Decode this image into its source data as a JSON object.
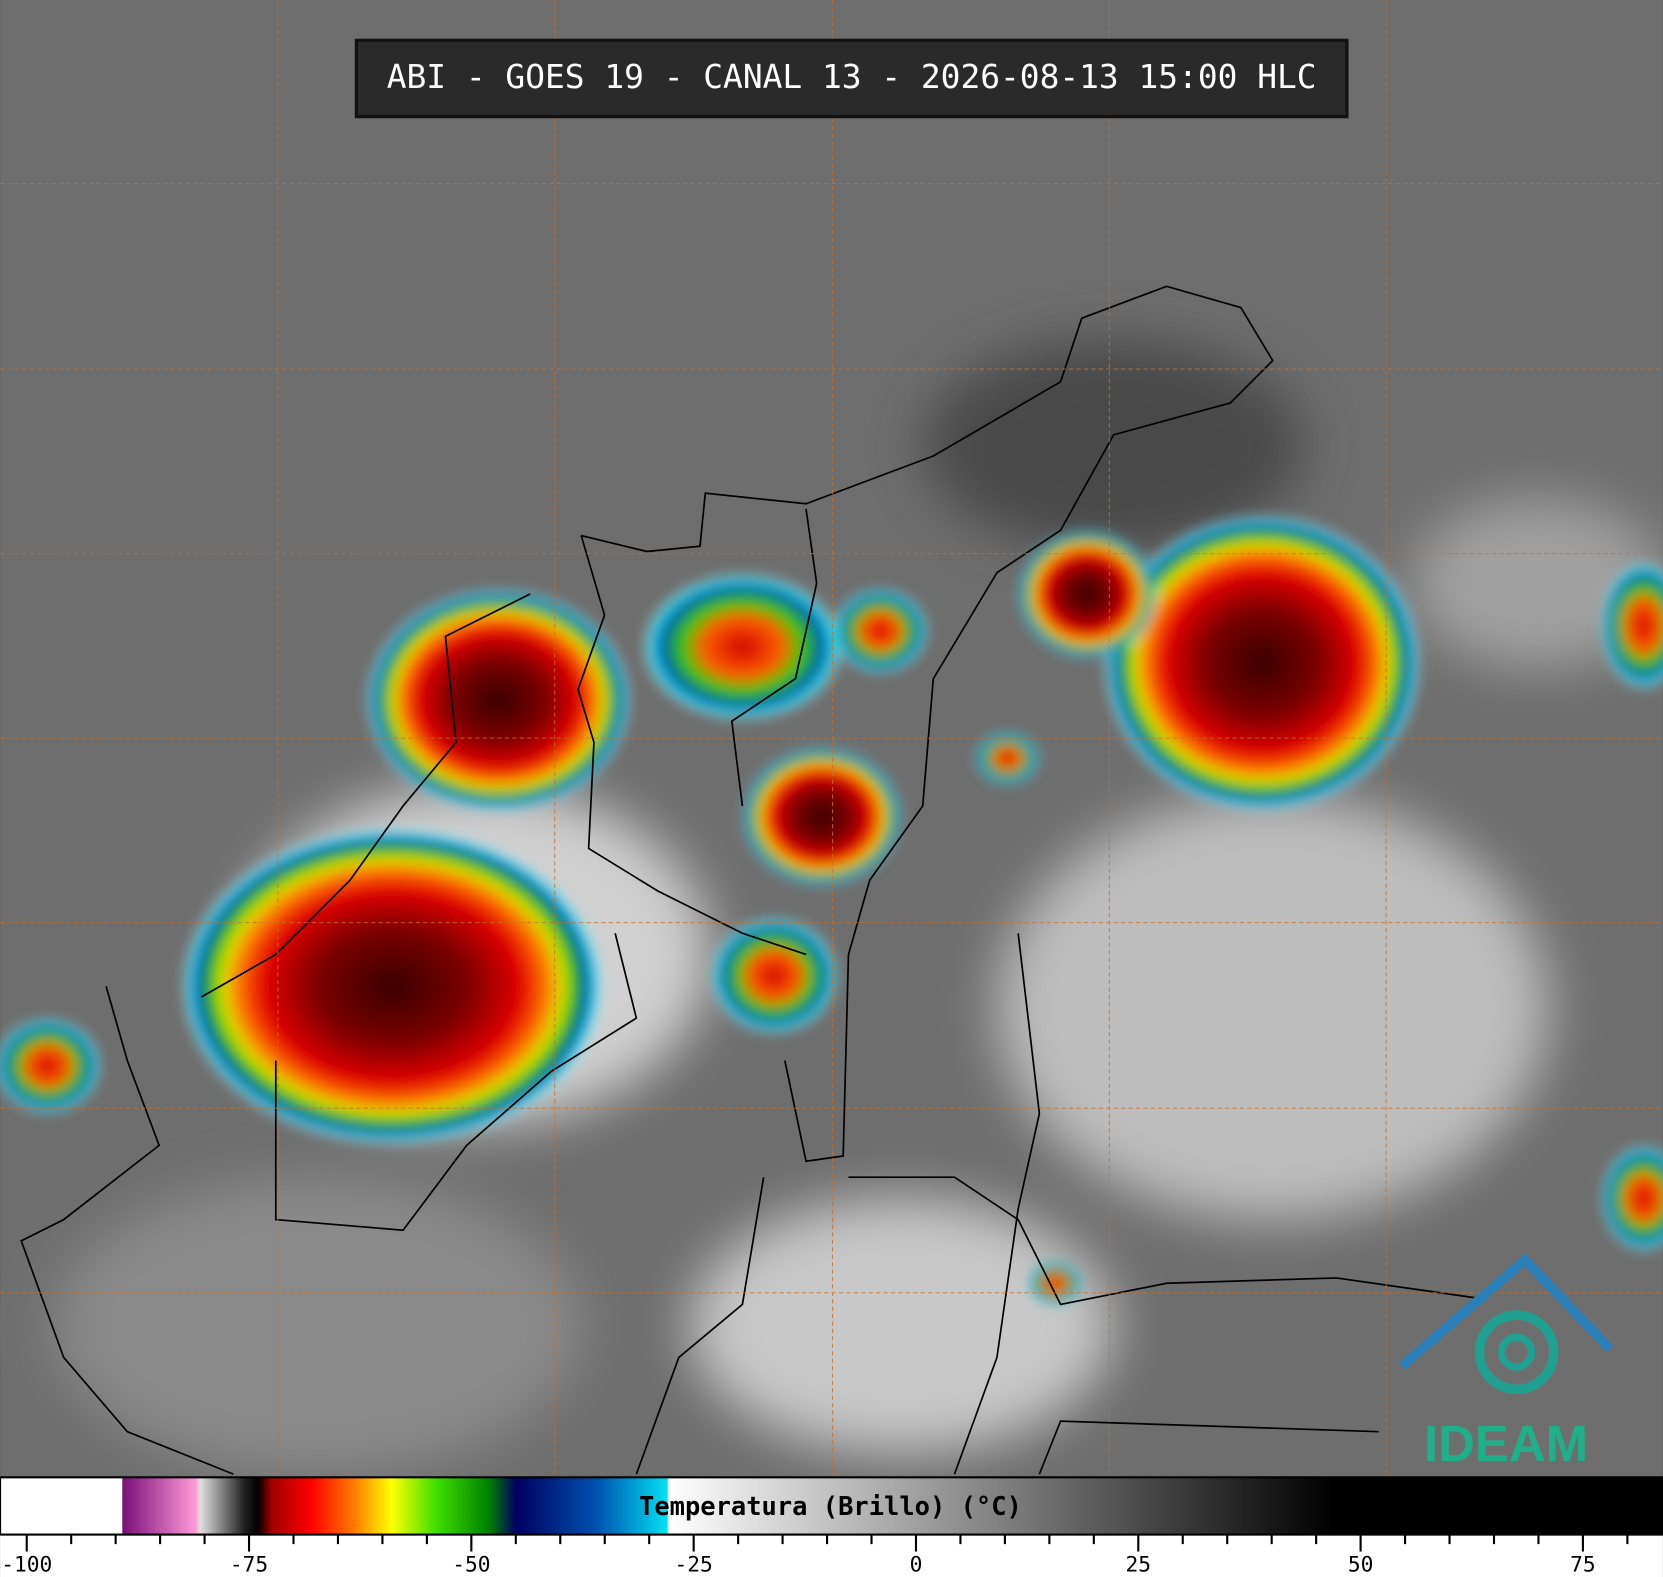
{
  "title": "ABI - GOES 19 - CANAL 13 - 2026-08-13 15:00 HLC",
  "logo": "IDEAM",
  "colorbar": {
    "label": "Temperatura (Brillo) (°C)",
    "xlim": [
      -103,
      84
    ],
    "xticks": [
      -100,
      -75,
      -50,
      -25,
      0,
      25,
      50,
      75
    ],
    "minor_tick_step": 5,
    "stops": [
      {
        "value": -103,
        "color": "#ffffff"
      },
      {
        "value": -89.3,
        "color": "#ffffff"
      },
      {
        "value": -89.2,
        "color": "#7a0f7a"
      },
      {
        "value": -81,
        "color": "#ff9ad8"
      },
      {
        "value": -80.5,
        "color": "#e0e0e0"
      },
      {
        "value": -75.5,
        "color": "#202020"
      },
      {
        "value": -74,
        "color": "#000000"
      },
      {
        "value": -72.5,
        "color": "#a00000"
      },
      {
        "value": -68,
        "color": "#ff0000"
      },
      {
        "value": -63,
        "color": "#ff8000"
      },
      {
        "value": -59,
        "color": "#ffff00"
      },
      {
        "value": -54,
        "color": "#40e000"
      },
      {
        "value": -48,
        "color": "#008000"
      },
      {
        "value": -45,
        "color": "#000060"
      },
      {
        "value": -36,
        "color": "#0050b0"
      },
      {
        "value": -28,
        "color": "#00e0f0"
      },
      {
        "value": -27.8,
        "color": "#ffffff"
      },
      {
        "value": 47,
        "color": "#000000"
      },
      {
        "value": 84,
        "color": "#000000"
      }
    ]
  }
}
